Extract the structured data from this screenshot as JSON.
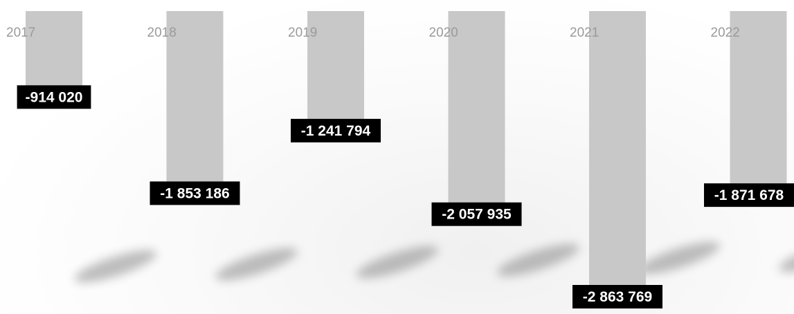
{
  "chart_data": {
    "type": "bar",
    "title": "",
    "xlabel": "",
    "ylabel": "",
    "categories": [
      "2017",
      "2018",
      "2019",
      "2020",
      "2021",
      "2022"
    ],
    "values": [
      -914020,
      -1853186,
      -1241794,
      -2057935,
      -2863769,
      -1871678
    ],
    "data_labels": [
      "-914 020",
      "-1 853 186",
      "-1 241 794",
      "-2 057 935",
      "-2 863 769",
      "-1 871 678"
    ],
    "ylim": [
      -2863769,
      0
    ],
    "grid": false,
    "legend": "none",
    "bar_color": "#c8c8c8",
    "label_background": "#000000",
    "label_text_color": "#ffffff",
    "category_label_color": "#9a9a9a"
  }
}
